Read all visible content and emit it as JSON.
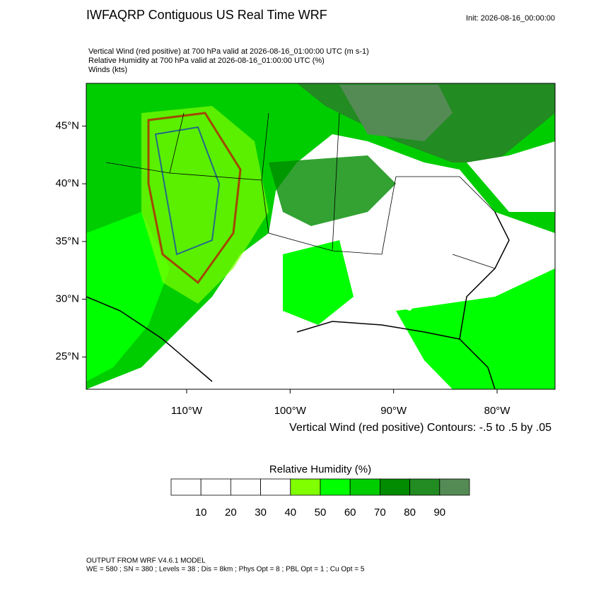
{
  "header": {
    "title": "IWFAQRP Contiguous US Real Time WRF",
    "init": "Init: 2026-08-16_00:00:00"
  },
  "fields": [
    "Vertical Wind (red positive) at 700 hPa valid at 2026-08-16_01:00:00 UTC   (m s-1)",
    "Relative Humidity at 700 hPa valid at 2026-08-16_01:00:00 UTC   (%)",
    "Winds   (kts)"
  ],
  "map": {
    "lon_range": [
      -119.7,
      -74.4
    ],
    "lat_range": [
      22.2,
      48.7
    ],
    "lat_ticks": [
      {
        "value": 45,
        "label": "45°N"
      },
      {
        "value": 40,
        "label": "40°N"
      },
      {
        "value": 35,
        "label": "35°N"
      },
      {
        "value": 30,
        "label": "30°N"
      },
      {
        "value": 25,
        "label": "25°N"
      }
    ],
    "lon_ticks": [
      {
        "value": -110,
        "label": "110°W"
      },
      {
        "value": -100,
        "label": "100°W"
      },
      {
        "value": -90,
        "label": "90°W"
      },
      {
        "value": -80,
        "label": "80°W"
      }
    ]
  },
  "contour_note": "Vertical Wind (red positive) Contours: -.5 to .5 by .05",
  "colorbar": {
    "title": "Relative Humidity  (%)",
    "ticks": [
      10,
      20,
      30,
      40,
      50,
      60,
      70,
      80,
      90
    ],
    "colors": [
      "#ffffff",
      "#ffffff",
      "#ffffff",
      "#ffffff",
      "#80ff00",
      "#00ff00",
      "#00cd00",
      "#008b00",
      "#228b22",
      "#548b54"
    ]
  },
  "footer": [
    "OUTPUT FROM WRF V4.6.1 MODEL",
    "WE = 580 ; SN = 380 ; Levels = 38 ; Dis = 8km ; Phys Opt = 8 ; PBL Opt = 1 ; Cu Opt = 5"
  ]
}
